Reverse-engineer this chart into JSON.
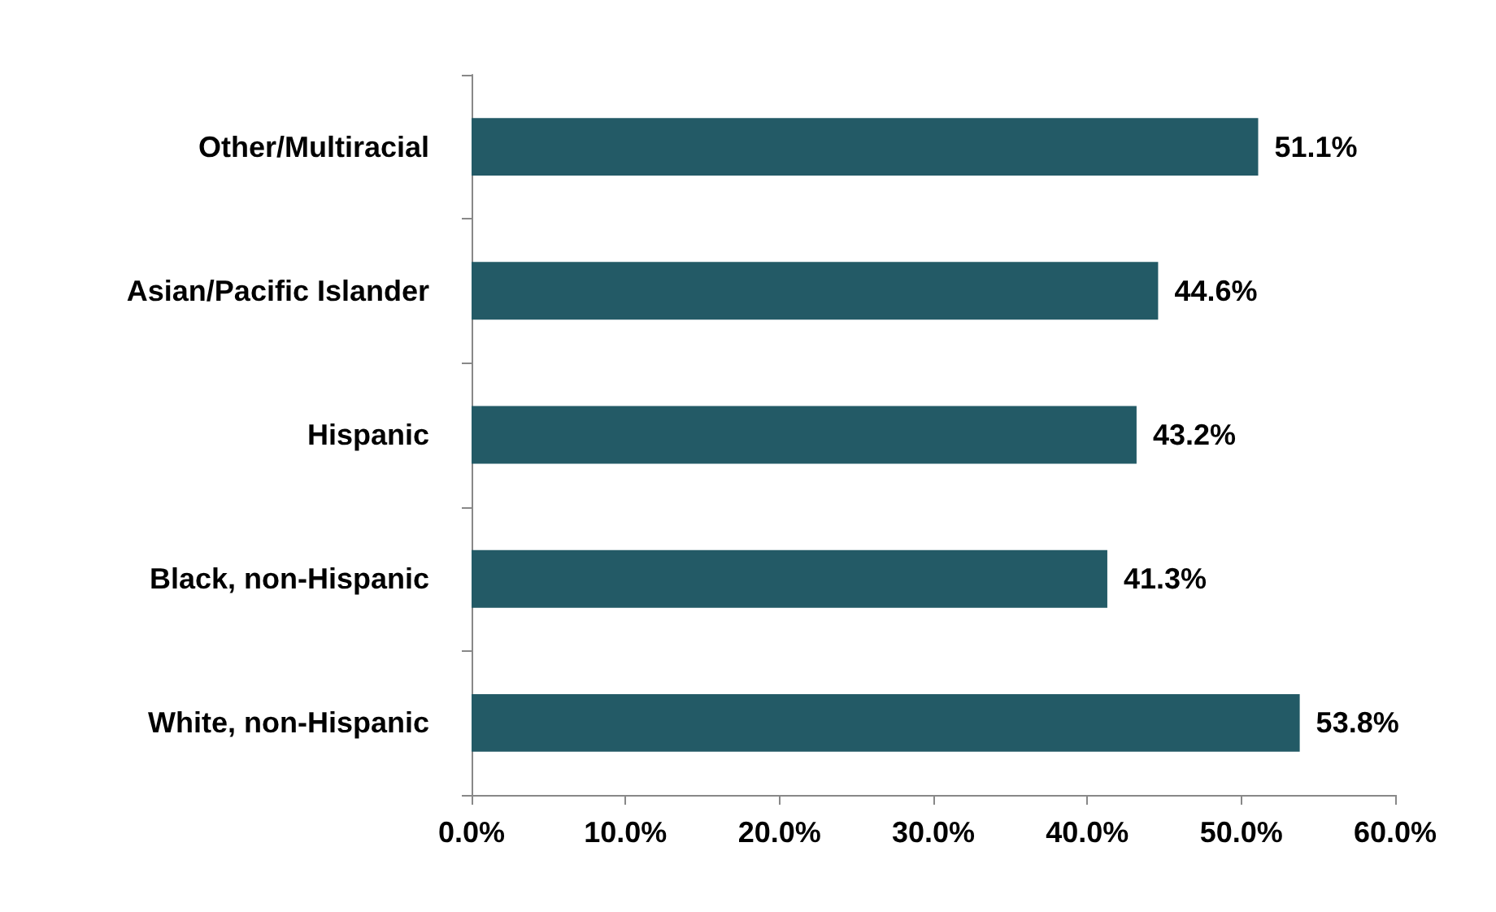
{
  "chart_data": {
    "type": "bar",
    "orientation": "horizontal",
    "categories": [
      "Other/Multiracial",
      "Asian/Pacific Islander",
      "Hispanic",
      "Black, non-Hispanic",
      "White, non-Hispanic"
    ],
    "values": [
      51.1,
      44.6,
      43.2,
      41.3,
      53.8
    ],
    "value_labels": [
      "51.1%",
      "44.6%",
      "43.2%",
      "41.3%",
      "53.8%"
    ],
    "color": "#235a66",
    "xlim": [
      0,
      60
    ],
    "xticks": [
      {
        "value": 0,
        "label": "0.0%"
      },
      {
        "value": 10,
        "label": "10.0%"
      },
      {
        "value": 20,
        "label": "20.0%"
      },
      {
        "value": 30,
        "label": "30.0%"
      },
      {
        "value": 40,
        "label": "40.0%"
      },
      {
        "value": 50,
        "label": "50.0%"
      },
      {
        "value": 60,
        "label": "60.0%"
      }
    ],
    "grid": false
  }
}
